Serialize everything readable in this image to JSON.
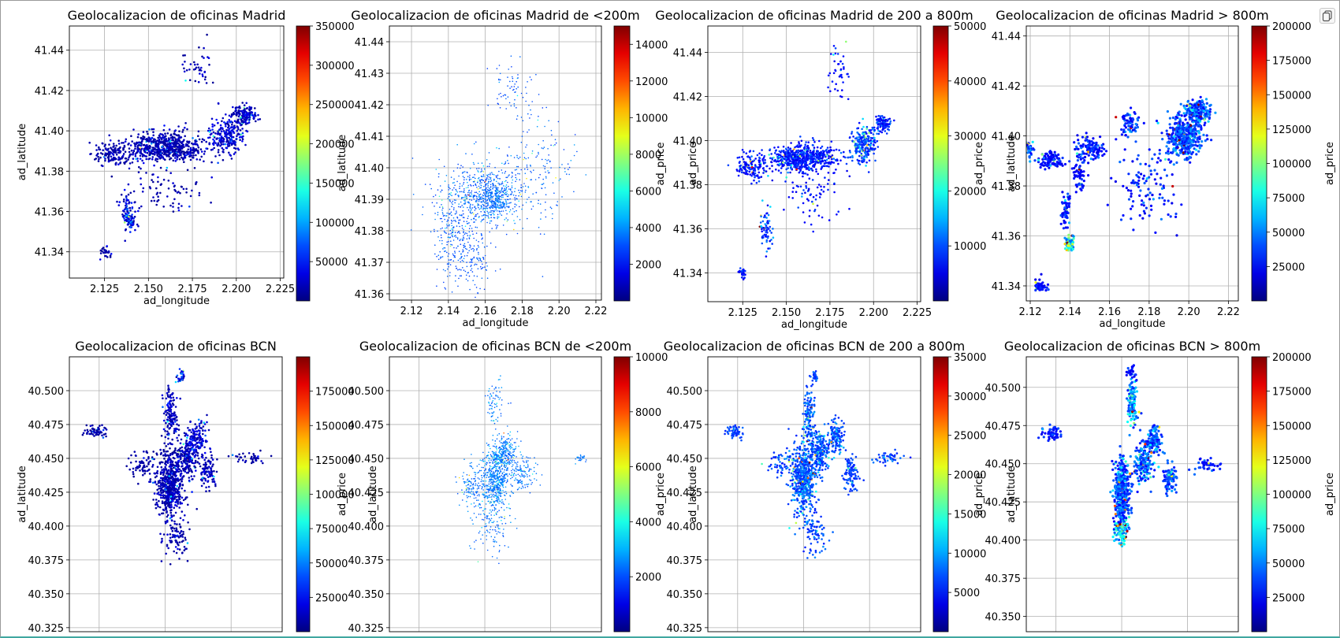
{
  "copy_button": {
    "icon": "copy-icon"
  },
  "colormap": "jet",
  "chart_data": [
    {
      "type": "scatter",
      "title": "Geolocalizacion de oficinas Madrid",
      "xlabel": "ad_longitude",
      "ylabel": "ad_latitude",
      "cbar_label": "",
      "xlim": [
        2.105,
        2.227
      ],
      "ylim": [
        41.327,
        41.452
      ],
      "xticks": [
        2.125,
        2.15,
        2.175,
        2.2,
        2.225
      ],
      "xtick_labels": [
        "2.125",
        "2.150",
        "2.175",
        "2.200",
        "2.225"
      ],
      "yticks": [
        41.34,
        41.36,
        41.38,
        41.4,
        41.42,
        41.44
      ],
      "ytick_labels": [
        "41.34",
        "41.36",
        "41.38",
        "41.40",
        "41.42",
        "41.44"
      ],
      "cbar_range": [
        0,
        350000
      ],
      "cbar_ticks": [
        50000,
        100000,
        150000,
        200000,
        250000,
        300000,
        350000
      ],
      "cbar_tick_labels": [
        "50000",
        "100000",
        "150000",
        "200000",
        "250000",
        "300000",
        "350000"
      ],
      "marker_radius": 1.3,
      "clusters": [
        [
          2.16,
          41.392,
          0.018,
          0.006,
          0.45,
          0.02,
          0.08
        ],
        [
          2.195,
          41.398,
          0.008,
          0.008,
          0.16,
          0.03,
          0.12
        ],
        [
          2.205,
          41.408,
          0.006,
          0.004,
          0.1,
          0.02,
          0.1
        ],
        [
          2.13,
          41.388,
          0.009,
          0.005,
          0.1,
          0.02,
          0.06
        ],
        [
          2.138,
          41.36,
          0.003,
          0.008,
          0.05,
          0.03,
          0.2
        ],
        [
          2.14,
          41.355,
          0.002,
          0.003,
          0.03,
          0.03,
          0.3
        ],
        [
          2.125,
          41.34,
          0.003,
          0.002,
          0.02,
          0.02,
          0.05
        ],
        [
          2.178,
          41.43,
          0.008,
          0.012,
          0.03,
          0.01,
          0.1
        ],
        [
          2.16,
          41.37,
          0.02,
          0.012,
          0.06,
          0.02,
          0.06
        ]
      ]
    },
    {
      "type": "scatter",
      "title": "Geolocalizacion de oficinas Madrid de <200m",
      "xlabel": "ad_longitude",
      "ylabel": "ad_latitude",
      "cbar_label": "ad_price",
      "xlim": [
        2.108,
        2.223
      ],
      "ylim": [
        41.358,
        41.445
      ],
      "xticks": [
        2.12,
        2.14,
        2.16,
        2.18,
        2.2,
        2.22
      ],
      "xtick_labels": [
        "2.12",
        "2.14",
        "2.16",
        "2.18",
        "2.20",
        "2.22"
      ],
      "yticks": [
        41.36,
        41.37,
        41.38,
        41.39,
        41.4,
        41.41,
        41.42,
        41.43,
        41.44
      ],
      "ytick_labels": [
        "41.36",
        "41.37",
        "41.38",
        "41.39",
        "41.40",
        "41.41",
        "41.42",
        "41.43",
        "41.44"
      ],
      "cbar_range": [
        0,
        15000
      ],
      "cbar_ticks": [
        2000,
        4000,
        6000,
        8000,
        10000,
        12000,
        14000
      ],
      "cbar_tick_labels": [
        "2000",
        "4000",
        "6000",
        "8000",
        "10000",
        "12000",
        "14000"
      ],
      "marker_radius": 0.8,
      "clusters": [
        [
          2.16,
          41.392,
          0.02,
          0.009,
          0.4,
          0.18,
          0.1
        ],
        [
          2.165,
          41.39,
          0.008,
          0.005,
          0.2,
          0.2,
          0.08
        ],
        [
          2.145,
          41.38,
          0.012,
          0.01,
          0.15,
          0.18,
          0.08
        ],
        [
          2.19,
          41.4,
          0.015,
          0.015,
          0.1,
          0.18,
          0.08
        ],
        [
          2.175,
          41.425,
          0.01,
          0.008,
          0.05,
          0.18,
          0.05
        ],
        [
          2.15,
          41.37,
          0.012,
          0.008,
          0.1,
          0.18,
          0.06
        ]
      ]
    },
    {
      "type": "scatter",
      "title": "Geolocalizacion de oficinas Madrid de 200 a 800m",
      "xlabel": "ad_longitude",
      "ylabel": "ad_price",
      "cbar_label": "ad_latitude",
      "xlim": [
        2.105,
        2.227
      ],
      "ylim": [
        41.327,
        41.452
      ],
      "xticks": [
        2.125,
        2.15,
        2.175,
        2.2,
        2.225
      ],
      "xtick_labels": [
        "2.125",
        "2.150",
        "2.175",
        "2.200",
        "2.225"
      ],
      "yticks": [
        41.34,
        41.36,
        41.38,
        41.4,
        41.42,
        41.44
      ],
      "ytick_labels": [
        "41.34",
        "41.36",
        "41.38",
        "41.40",
        "41.42",
        "41.44"
      ],
      "cbar_range": [
        0,
        50000
      ],
      "cbar_ticks": [
        10000,
        20000,
        30000,
        40000,
        50000
      ],
      "cbar_tick_labels": [
        "10000",
        "20000",
        "30000",
        "40000",
        "50000"
      ],
      "marker_radius": 1.3,
      "clusters": [
        [
          2.16,
          41.392,
          0.016,
          0.005,
          0.45,
          0.1,
          0.12
        ],
        [
          2.195,
          41.398,
          0.006,
          0.007,
          0.16,
          0.12,
          0.15
        ],
        [
          2.205,
          41.408,
          0.004,
          0.003,
          0.08,
          0.1,
          0.15
        ],
        [
          2.13,
          41.388,
          0.007,
          0.005,
          0.1,
          0.1,
          0.12
        ],
        [
          2.138,
          41.36,
          0.003,
          0.008,
          0.05,
          0.1,
          0.2
        ],
        [
          2.125,
          41.34,
          0.002,
          0.002,
          0.02,
          0.1,
          0.1
        ],
        [
          2.18,
          41.43,
          0.006,
          0.01,
          0.03,
          0.1,
          0.1
        ],
        [
          2.165,
          41.375,
          0.015,
          0.01,
          0.05,
          0.1,
          0.1
        ]
      ]
    },
    {
      "type": "scatter",
      "title": "Geolocalizacion de oficinas Madrid > 800m",
      "xlabel": "ad_longitude",
      "ylabel": "ad_price",
      "cbar_label": "ad_price",
      "xlim": [
        2.118,
        2.225
      ],
      "ylim": [
        41.334,
        41.444
      ],
      "xticks": [
        2.12,
        2.14,
        2.16,
        2.18,
        2.2,
        2.22
      ],
      "xtick_labels": [
        "2.12",
        "2.14",
        "2.16",
        "2.18",
        "2.20",
        "2.22"
      ],
      "yticks": [
        41.34,
        41.36,
        41.38,
        41.4,
        41.42,
        41.44
      ],
      "ytick_labels": [
        "41.34",
        "41.36",
        "41.38",
        "41.40",
        "41.42",
        "41.44"
      ],
      "cbar_range": [
        0,
        200000
      ],
      "cbar_ticks": [
        25000,
        50000,
        75000,
        100000,
        125000,
        150000,
        175000,
        200000
      ],
      "cbar_tick_labels": [
        "25000",
        "50000",
        "75000",
        "100000",
        "125000",
        "150000",
        "175000",
        "200000"
      ],
      "marker_radius": 1.6,
      "clusters": [
        [
          2.198,
          41.4,
          0.008,
          0.008,
          0.3,
          0.12,
          0.2
        ],
        [
          2.205,
          41.41,
          0.005,
          0.004,
          0.12,
          0.12,
          0.2
        ],
        [
          2.15,
          41.395,
          0.006,
          0.004,
          0.08,
          0.1,
          0.15
        ],
        [
          2.13,
          41.39,
          0.005,
          0.003,
          0.07,
          0.1,
          0.1
        ],
        [
          2.14,
          41.357,
          0.002,
          0.003,
          0.06,
          0.2,
          0.4
        ],
        [
          2.138,
          41.37,
          0.002,
          0.006,
          0.04,
          0.1,
          0.1
        ],
        [
          2.125,
          41.34,
          0.003,
          0.002,
          0.03,
          0.1,
          0.1
        ],
        [
          2.17,
          41.405,
          0.004,
          0.004,
          0.05,
          0.1,
          0.2
        ],
        [
          2.18,
          41.38,
          0.012,
          0.012,
          0.08,
          0.1,
          0.15
        ],
        [
          2.145,
          41.385,
          0.003,
          0.006,
          0.04,
          0.1,
          0.1
        ],
        [
          2.12,
          41.395,
          0.002,
          0.003,
          0.02,
          0.1,
          0.3
        ]
      ]
    },
    {
      "type": "scatter",
      "title": "Geolocalizacion de oficinas BCN",
      "xlabel": "",
      "ylabel": "ad_latitude",
      "cbar_label": "ad_latitude",
      "xlim": [
        -3.8,
        -3.6
      ],
      "ylim": [
        40.322,
        40.525
      ],
      "xticks": [],
      "xtick_labels": [],
      "yticks": [
        40.325,
        40.35,
        40.375,
        40.4,
        40.425,
        40.45,
        40.475,
        40.5
      ],
      "ytick_labels": [
        "40.325",
        "40.350",
        "40.375",
        "40.400",
        "40.425",
        "40.450",
        "40.475",
        "40.500"
      ],
      "cbar_range": [
        0,
        200000
      ],
      "cbar_ticks": [
        25000,
        50000,
        75000,
        100000,
        125000,
        150000,
        175000
      ],
      "cbar_tick_labels": [
        "25000",
        "50000",
        "75000",
        "100000",
        "125000",
        "150000",
        "175000"
      ],
      "marker_radius": 1.3,
      "clusters": [
        [
          -3.705,
          40.43,
          0.01,
          0.02,
          0.4,
          0.02,
          0.08
        ],
        [
          -3.69,
          40.45,
          0.008,
          0.012,
          0.15,
          0.02,
          0.1
        ],
        [
          -3.68,
          40.465,
          0.008,
          0.01,
          0.1,
          0.03,
          0.12
        ],
        [
          -3.705,
          40.48,
          0.005,
          0.02,
          0.1,
          0.02,
          0.1
        ],
        [
          -3.67,
          40.44,
          0.006,
          0.01,
          0.07,
          0.02,
          0.1
        ],
        [
          -3.73,
          40.445,
          0.012,
          0.01,
          0.05,
          0.02,
          0.05
        ],
        [
          -3.775,
          40.47,
          0.01,
          0.004,
          0.04,
          0.02,
          0.05
        ],
        [
          -3.7,
          40.39,
          0.012,
          0.015,
          0.06,
          0.02,
          0.05
        ],
        [
          -3.63,
          40.45,
          0.015,
          0.004,
          0.03,
          0.02,
          0.05
        ],
        [
          -3.695,
          40.51,
          0.004,
          0.004,
          0.02,
          0.03,
          0.3
        ]
      ]
    },
    {
      "type": "scatter",
      "title": "Geolocalizacion de oficinas BCN de <200m",
      "xlabel": "",
      "ylabel": "ad_price",
      "cbar_label": "ad_latitude",
      "xlim": [
        -3.8,
        -3.6
      ],
      "ylim": [
        40.322,
        40.525
      ],
      "xticks": [],
      "xtick_labels": [],
      "yticks": [
        40.325,
        40.35,
        40.375,
        40.4,
        40.425,
        40.45,
        40.475,
        40.5
      ],
      "ytick_labels": [
        "40.325",
        "40.350",
        "40.375",
        "40.400",
        "40.425",
        "40.450",
        "40.475",
        "40.500"
      ],
      "cbar_range": [
        0,
        10000
      ],
      "cbar_ticks": [
        2000,
        4000,
        6000,
        8000,
        10000
      ],
      "cbar_tick_labels": [
        "2000",
        "4000",
        "6000",
        "8000",
        "10000"
      ],
      "marker_radius": 0.8,
      "clusters": [
        [
          -3.7,
          40.435,
          0.01,
          0.02,
          0.4,
          0.2,
          0.12
        ],
        [
          -3.69,
          40.455,
          0.008,
          0.01,
          0.15,
          0.2,
          0.12
        ],
        [
          -3.675,
          40.44,
          0.012,
          0.012,
          0.1,
          0.2,
          0.1
        ],
        [
          -3.72,
          40.43,
          0.012,
          0.012,
          0.1,
          0.2,
          0.08
        ],
        [
          -3.705,
          40.4,
          0.015,
          0.02,
          0.08,
          0.2,
          0.08
        ],
        [
          -3.7,
          40.49,
          0.008,
          0.015,
          0.05,
          0.2,
          0.1
        ],
        [
          -3.62,
          40.45,
          0.006,
          0.003,
          0.02,
          0.2,
          0.1
        ]
      ]
    },
    {
      "type": "scatter",
      "title": "Geolocalizacion de oficinas BCN de 200 a 800m",
      "xlabel": "",
      "ylabel": "ad_price",
      "cbar_label": "ad_latitude",
      "xlim": [
        -3.8,
        -3.6
      ],
      "ylim": [
        40.322,
        40.525
      ],
      "xticks": [],
      "xtick_labels": [],
      "yticks": [
        40.325,
        40.35,
        40.375,
        40.4,
        40.425,
        40.45,
        40.475,
        40.5
      ],
      "ytick_labels": [
        "40.325",
        "40.350",
        "40.375",
        "40.400",
        "40.425",
        "40.450",
        "40.475",
        "40.500"
      ],
      "cbar_range": [
        0,
        35000
      ],
      "cbar_ticks": [
        5000,
        10000,
        15000,
        20000,
        25000,
        30000,
        35000
      ],
      "cbar_tick_labels": [
        "5000",
        "10000",
        "15000",
        "20000",
        "25000",
        "30000",
        "35000"
      ],
      "marker_radius": 1.3,
      "clusters": [
        [
          -3.71,
          40.435,
          0.009,
          0.02,
          0.4,
          0.15,
          0.15
        ],
        [
          -3.695,
          40.455,
          0.007,
          0.012,
          0.15,
          0.15,
          0.15
        ],
        [
          -3.68,
          40.465,
          0.007,
          0.01,
          0.1,
          0.15,
          0.15
        ],
        [
          -3.705,
          40.48,
          0.005,
          0.02,
          0.1,
          0.15,
          0.15
        ],
        [
          -3.665,
          40.44,
          0.006,
          0.01,
          0.07,
          0.15,
          0.1
        ],
        [
          -3.73,
          40.445,
          0.012,
          0.01,
          0.05,
          0.15,
          0.1
        ],
        [
          -3.775,
          40.47,
          0.008,
          0.004,
          0.04,
          0.15,
          0.1
        ],
        [
          -3.7,
          40.395,
          0.01,
          0.015,
          0.06,
          0.15,
          0.1
        ],
        [
          -3.63,
          40.45,
          0.012,
          0.004,
          0.03,
          0.15,
          0.1
        ],
        [
          -3.7,
          40.51,
          0.004,
          0.004,
          0.02,
          0.15,
          0.1
        ]
      ]
    },
    {
      "type": "scatter",
      "title": "Geolocalizacion de oficinas BCN > 800m",
      "xlabel": "",
      "ylabel": "ad_price",
      "cbar_label": "ad_price",
      "xlim": [
        -3.8,
        -3.6
      ],
      "ylim": [
        40.34,
        40.52
      ],
      "xticks": [],
      "xtick_labels": [],
      "yticks": [
        40.35,
        40.375,
        40.4,
        40.425,
        40.45,
        40.475,
        40.5
      ],
      "ytick_labels": [
        "40.350",
        "40.375",
        "40.400",
        "40.425",
        "40.450",
        "40.475",
        "40.500"
      ],
      "cbar_range": [
        0,
        200000
      ],
      "cbar_ticks": [
        25000,
        50000,
        75000,
        100000,
        125000,
        150000,
        175000,
        200000
      ],
      "cbar_tick_labels": [
        "25000",
        "50000",
        "75000",
        "100000",
        "125000",
        "150000",
        "175000",
        "200000"
      ],
      "marker_radius": 1.6,
      "clusters": [
        [
          -3.71,
          40.43,
          0.006,
          0.02,
          0.3,
          0.12,
          0.2
        ],
        [
          -3.69,
          40.45,
          0.006,
          0.01,
          0.12,
          0.12,
          0.25
        ],
        [
          -3.68,
          40.465,
          0.006,
          0.008,
          0.08,
          0.12,
          0.2
        ],
        [
          -3.7,
          40.49,
          0.004,
          0.012,
          0.08,
          0.15,
          0.3
        ],
        [
          -3.665,
          40.44,
          0.005,
          0.008,
          0.06,
          0.12,
          0.15
        ],
        [
          -3.775,
          40.47,
          0.008,
          0.004,
          0.04,
          0.1,
          0.1
        ],
        [
          -3.71,
          40.405,
          0.005,
          0.008,
          0.05,
          0.2,
          0.4
        ],
        [
          -3.63,
          40.45,
          0.01,
          0.004,
          0.03,
          0.1,
          0.1
        ],
        [
          -3.7,
          40.51,
          0.004,
          0.004,
          0.02,
          0.1,
          0.1
        ]
      ]
    }
  ]
}
